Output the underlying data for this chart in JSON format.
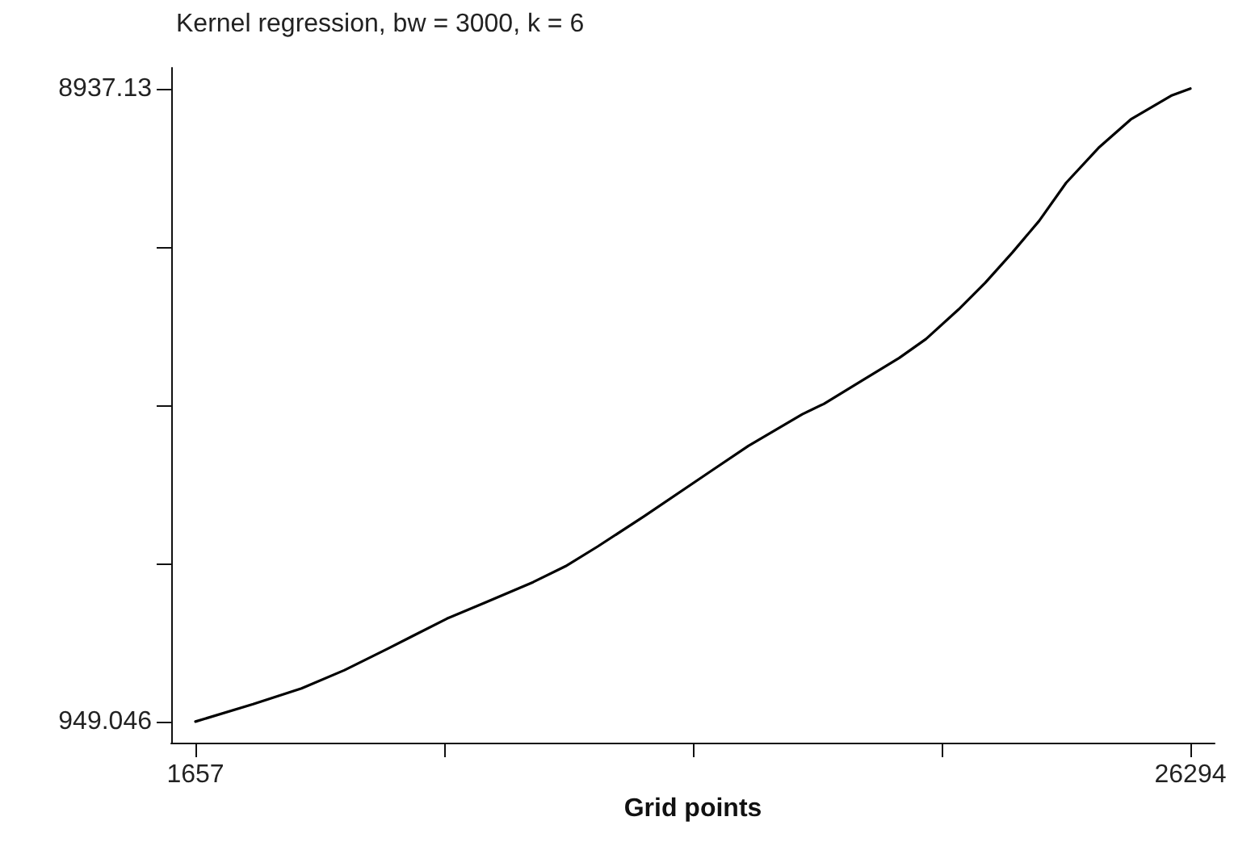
{
  "chart_data": {
    "type": "line",
    "title": "Kernel regression, bw = 3000, k = 6",
    "xlabel": "Grid points",
    "x": [
      1657,
      3085,
      4285,
      5349,
      6417,
      7885,
      8817,
      10017,
      10817,
      11617,
      12765,
      14417,
      15349,
      16685,
      17217,
      18149,
      19085,
      19749,
      20549,
      21217,
      21885,
      22549,
      23217,
      24017,
      24817,
      25817,
      26294
    ],
    "series": [
      {
        "color": "#000000",
        "values": [
          950,
          1170,
          1370,
          1600,
          1870,
          2250,
          2450,
          2710,
          2910,
          3160,
          3540,
          4110,
          4430,
          4830,
          4960,
          5250,
          5540,
          5780,
          6150,
          6490,
          6870,
          7270,
          7750,
          8190,
          8550,
          8850,
          8940
        ]
      }
    ],
    "xlim": [
      1057,
      26894
    ],
    "ylim": [
      684,
      9202
    ],
    "xticks": [
      1657,
      {
        "value": 7816.25,
        "label": null
      },
      {
        "value": 13975.5,
        "label": null
      },
      {
        "value": 20134.75,
        "label": null
      },
      26294
    ],
    "yticks": [
      {
        "value": 949.046,
        "label": "949.046"
      },
      {
        "value": 2946.067,
        "label": null
      },
      {
        "value": 4943.088,
        "label": null
      },
      {
        "value": 6940.109,
        "label": null
      },
      {
        "value": 8937.13,
        "label": "8937.13"
      }
    ],
    "grid": false,
    "marker": "none",
    "line_style": "solid"
  }
}
